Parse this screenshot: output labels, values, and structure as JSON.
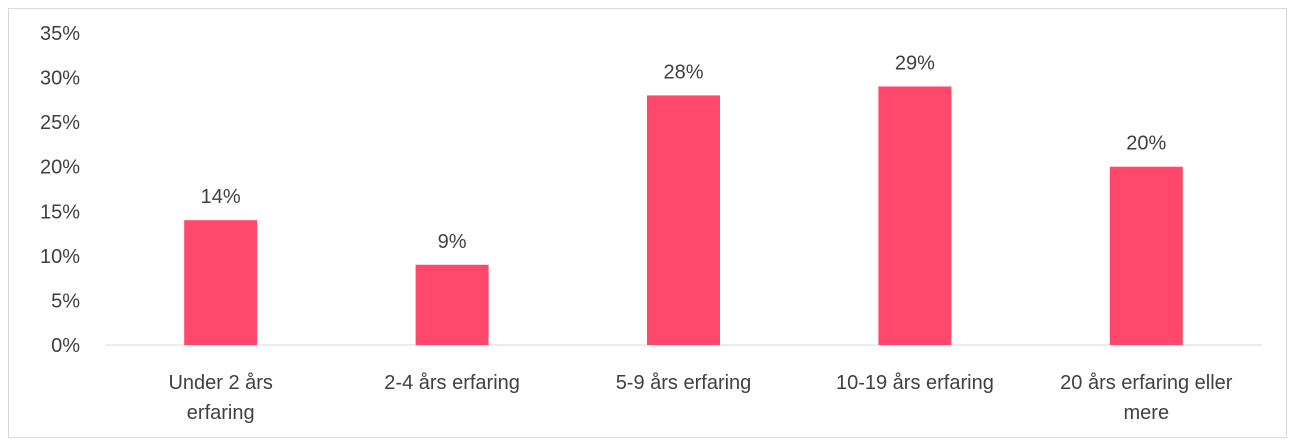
{
  "chart_data": {
    "type": "bar",
    "categories": [
      [
        "Under 2 års",
        "erfaring"
      ],
      [
        "2-4 års erfaring"
      ],
      [
        "5-9 års erfaring"
      ],
      [
        "10-19 års erfaring"
      ],
      [
        "20 års erfaring eller",
        "mere"
      ]
    ],
    "values": [
      14,
      9,
      28,
      29,
      20
    ],
    "data_labels": [
      "14%",
      "9%",
      "28%",
      "29%",
      "20%"
    ],
    "y_ticks": [
      "0%",
      "5%",
      "10%",
      "15%",
      "20%",
      "25%",
      "30%",
      "35%"
    ],
    "ylim": [
      0,
      35
    ],
    "grid": false,
    "legend": "none",
    "colors": {
      "bar": "#ff486c",
      "axis": "#d9d9d9",
      "text": "#404040",
      "frame": "#d9d9d9"
    }
  }
}
